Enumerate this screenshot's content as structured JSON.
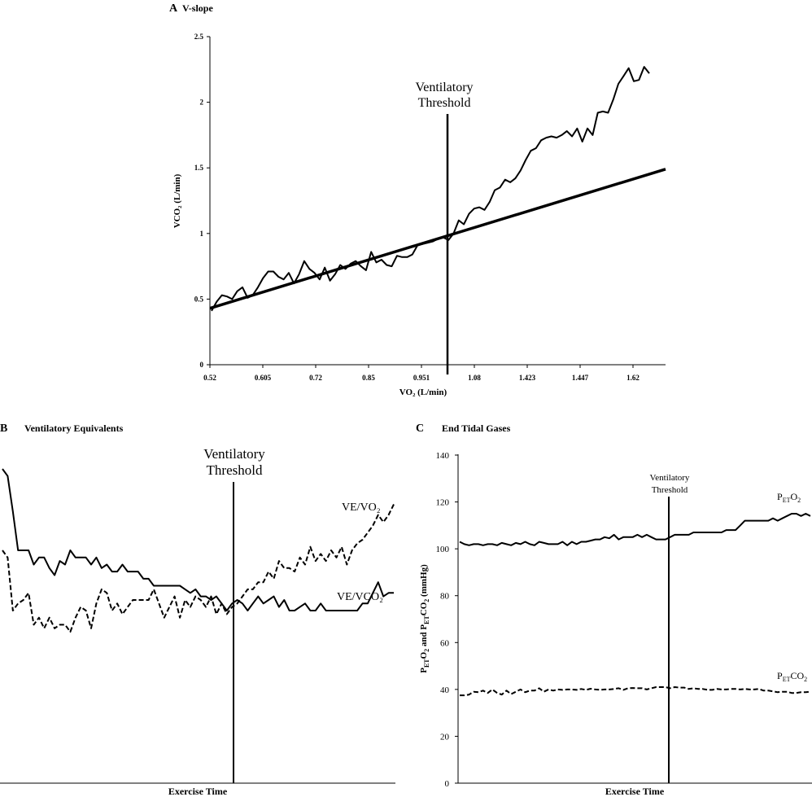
{
  "colors": {
    "ink": "#000000",
    "background": "#ffffff"
  },
  "panels": {
    "a": {
      "letter": "A",
      "title": "V-slope"
    },
    "b": {
      "letter": "B",
      "title": "Ventilatory Equivalents"
    },
    "c": {
      "letter": "C",
      "title": "End Tidal Gases"
    }
  },
  "chart_data": [
    {
      "id": "v-slope",
      "type": "line",
      "title": "V-slope",
      "xlabel": "VO₂ (L/min)",
      "ylabel": "VCO₂ (L/min)",
      "x_tick_labels": [
        "0.52",
        "0.605",
        "0.72",
        "0.85",
        "0.951",
        "1.08",
        "1.423",
        "1.447",
        "1.62"
      ],
      "y_ticks": [
        "0",
        "0.5",
        "1",
        "1.5",
        "2",
        "2.5"
      ],
      "ylim": [
        0,
        2.5
      ],
      "threshold": {
        "label_lines": [
          "Ventilatory",
          "Threshold"
        ],
        "x_index": 36
      },
      "series": [
        {
          "style": "solid",
          "values": [
            0.41,
            0.48,
            0.53,
            0.52,
            0.5,
            0.56,
            0.59,
            0.51,
            0.53,
            0.59,
            0.66,
            0.71,
            0.71,
            0.67,
            0.65,
            0.7,
            0.62,
            0.69,
            0.79,
            0.73,
            0.7,
            0.65,
            0.74,
            0.64,
            0.69,
            0.76,
            0.73,
            0.77,
            0.79,
            0.75,
            0.72,
            0.86,
            0.78,
            0.8,
            0.76,
            0.75,
            0.83,
            0.82,
            0.82,
            0.84,
            0.91,
            0.92,
            0.93,
            0.94,
            0.96,
            0.97,
            0.95,
            1.0,
            1.1,
            1.07,
            1.15,
            1.19,
            1.2,
            1.18,
            1.24,
            1.33,
            1.35,
            1.41,
            1.39,
            1.42,
            1.48,
            1.56,
            1.63,
            1.65,
            1.71,
            1.73,
            1.74,
            1.73,
            1.75,
            1.78,
            1.74,
            1.8,
            1.7,
            1.8,
            1.75,
            1.92,
            1.93,
            1.92,
            2.02,
            2.14,
            2.2,
            2.26,
            2.16,
            2.17,
            2.27,
            2.22
          ]
        },
        {
          "style": "thick",
          "values": [
            0.43,
            1.49
          ]
        }
      ]
    },
    {
      "id": "ventilatory-equivalents",
      "type": "line",
      "title": "Ventilatory Equivalents",
      "xlabel": "Exercise Time",
      "threshold": {
        "label_lines": [
          "Ventilatory",
          "Threshold"
        ],
        "x_index": 42
      },
      "series": [
        {
          "name": "VE/VCO₂",
          "style": "solid",
          "values": [
            0.4,
            0.38,
            0.28,
            0.17,
            0.17,
            0.17,
            0.13,
            0.15,
            0.15,
            0.12,
            0.1,
            0.14,
            0.13,
            0.17,
            0.15,
            0.15,
            0.15,
            0.13,
            0.15,
            0.12,
            0.13,
            0.11,
            0.11,
            0.13,
            0.11,
            0.11,
            0.11,
            0.09,
            0.09,
            0.07,
            0.07,
            0.07,
            0.07,
            0.07,
            0.07,
            0.06,
            0.05,
            0.06,
            0.04,
            0.04,
            0.03,
            0.04,
            0.02,
            0.0,
            0.02,
            0.03,
            0.02,
            0.0,
            0.02,
            0.04,
            0.02,
            0.03,
            0.04,
            0.01,
            0.03,
            0.0,
            0.0,
            0.01,
            0.02,
            0.0,
            0.0,
            0.02,
            0.0,
            0.0,
            0.0,
            0.0,
            0.0,
            0.0,
            0.0,
            0.02,
            0.02,
            0.05,
            0.08,
            0.04,
            0.05,
            0.05
          ]
        },
        {
          "name": "VE/VO₂",
          "style": "dashed",
          "values": [
            0.17,
            0.15,
            0.0,
            0.02,
            0.03,
            0.05,
            -0.04,
            -0.02,
            -0.05,
            -0.02,
            -0.05,
            -0.04,
            -0.04,
            -0.06,
            -0.02,
            0.01,
            0.0,
            -0.05,
            0.02,
            0.06,
            0.05,
            0.0,
            0.02,
            -0.01,
            0.01,
            0.03,
            0.03,
            0.03,
            0.03,
            0.06,
            0.02,
            -0.02,
            0.01,
            0.04,
            -0.02,
            0.03,
            0.01,
            0.04,
            0.03,
            0.01,
            0.04,
            -0.01,
            0.02,
            -0.01,
            0.01,
            0.02,
            0.04,
            0.06,
            0.06,
            0.08,
            0.08,
            0.11,
            0.09,
            0.14,
            0.12,
            0.12,
            0.11,
            0.15,
            0.13,
            0.18,
            0.14,
            0.16,
            0.14,
            0.17,
            0.15,
            0.18,
            0.13,
            0.17,
            0.19,
            0.2,
            0.22,
            0.24,
            0.27,
            0.25,
            0.27,
            0.3
          ]
        }
      ]
    },
    {
      "id": "end-tidal-gases",
      "type": "line",
      "title": "End Tidal Gases",
      "xlabel": "Exercise Time",
      "ylabel": "P_ET O₂ and P_ET CO₂ (mmHg)",
      "y_ticks": [
        "0",
        "20",
        "40",
        "60",
        "80",
        "100",
        "120",
        "140"
      ],
      "ylim": [
        0,
        140
      ],
      "threshold": {
        "label_lines": [
          "Ventilatory",
          "Threshold"
        ],
        "x_index": 42
      },
      "series": [
        {
          "name": "P_ET O₂",
          "style": "solid",
          "values": [
            103,
            102,
            101.5,
            102,
            102,
            101.5,
            102,
            102,
            101.5,
            102.5,
            102,
            101.5,
            102.5,
            102,
            103,
            102,
            101.5,
            103,
            102.5,
            102,
            102,
            102,
            103,
            101.5,
            103,
            102,
            103,
            103,
            103.5,
            104,
            104,
            105,
            104.5,
            106,
            104,
            105,
            105,
            105,
            106,
            105,
            106,
            105,
            104,
            104,
            104,
            105,
            106,
            106,
            106,
            106,
            107,
            107,
            107,
            107,
            107,
            107,
            107,
            108,
            108,
            108,
            110,
            112,
            112,
            112,
            112,
            112,
            112,
            113,
            112,
            113,
            114,
            115,
            115,
            114,
            115,
            114
          ]
        },
        {
          "name": "P_ET CO₂",
          "style": "dashed",
          "values": [
            37.5,
            37.5,
            37.8,
            39,
            38.8,
            39.5,
            38.5,
            40,
            38.5,
            37.8,
            39.5,
            38,
            39,
            40,
            38.8,
            39.5,
            39.5,
            40.5,
            39,
            40,
            39.5,
            40,
            39.8,
            40,
            40,
            39.8,
            40.2,
            39.8,
            40.3,
            40,
            39.8,
            40,
            40,
            40.2,
            40.5,
            39.8,
            40.5,
            40.6,
            40.5,
            40.5,
            40,
            40.5,
            41,
            41,
            41,
            40.5,
            41,
            40.8,
            40.8,
            40.2,
            40.5,
            40.2,
            40.2,
            39.8,
            39.8,
            40.2,
            40,
            40,
            40.2,
            40.2,
            40,
            40.2,
            40,
            40,
            40.2,
            39.5,
            39.5,
            39.2,
            38.8,
            39,
            39,
            38.5,
            38.5,
            38.8,
            38.8,
            39
          ]
        }
      ]
    }
  ]
}
